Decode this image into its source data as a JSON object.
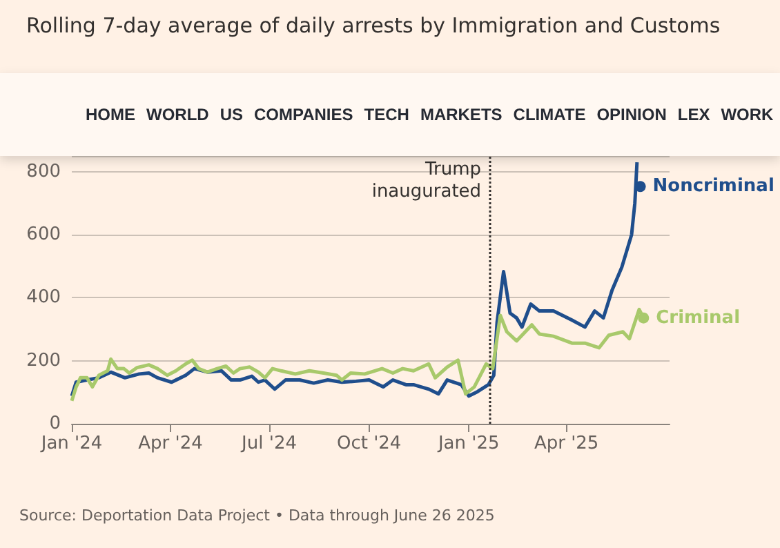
{
  "chart_data": {
    "type": "line",
    "title": "Rolling 7-day average of daily arrests by Immigration and Customs",
    "annotations": [
      "Source: Deportation Data Project • Data through June 26 2025",
      "HOME",
      "WORLD",
      "US",
      "COMPANIES",
      "TECH",
      "MARKETS",
      "CLIMATE",
      "OPINION",
      "LEX",
      "WORK"
    ],
    "series": [
      {
        "name": "Noncriminal",
        "color": "#1f4e8c",
        "x": [
          "2024-01-01",
          "2024-01-05",
          "2024-01-15",
          "2024-01-26",
          "2024-02-06",
          "2024-02-19",
          "2024-03-03",
          "2024-03-12",
          "2024-03-20",
          "2024-04-02",
          "2024-04-15",
          "2024-04-23",
          "2024-05-05",
          "2024-05-18",
          "2024-05-27",
          "2024-06-04",
          "2024-06-15",
          "2024-06-21",
          "2024-06-27",
          "2024-07-06",
          "2024-07-16",
          "2024-07-29",
          "2024-08-11",
          "2024-08-24",
          "2024-09-06",
          "2024-09-19",
          "2024-10-01",
          "2024-10-14",
          "2024-10-23",
          "2024-11-04",
          "2024-11-11",
          "2024-11-25",
          "2024-12-04",
          "2024-12-12",
          "2024-12-25",
          "2025-01-01",
          "2025-01-09",
          "2025-01-19",
          "2025-01-24",
          "2025-01-27",
          "2025-02-02",
          "2025-02-08",
          "2025-02-14",
          "2025-02-19",
          "2025-02-27",
          "2025-03-07",
          "2025-03-20",
          "2025-04-06",
          "2025-04-18",
          "2025-04-27",
          "2025-05-05",
          "2025-05-13",
          "2025-05-22",
          "2025-05-31",
          "2025-06-03",
          "2025-06-05",
          "2025-06-07",
          "2025-06-08"
        ],
        "values": [
          88,
          132,
          139,
          146,
          164,
          146,
          158,
          161,
          146,
          132,
          154,
          175,
          164,
          168,
          139,
          139,
          151,
          132,
          139,
          110,
          139,
          139,
          129,
          139,
          132,
          135,
          139,
          117,
          139,
          124,
          124,
          110,
          95,
          139,
          124,
          88,
          102,
          124,
          154,
          322,
          483,
          351,
          336,
          307,
          380,
          358,
          358,
          329,
          307,
          358,
          336,
          424,
          497,
          600,
          700,
          830,
          null,
          753
        ]
      },
      {
        "name": "Criminal",
        "color": "#a8c96b",
        "x": [
          "2024-01-01",
          "2024-01-05",
          "2024-01-09",
          "2024-01-15",
          "2024-01-20",
          "2024-01-26",
          "2024-02-03",
          "2024-02-06",
          "2024-02-12",
          "2024-02-18",
          "2024-02-23",
          "2024-03-01",
          "2024-03-12",
          "2024-03-20",
          "2024-03-29",
          "2024-04-06",
          "2024-04-15",
          "2024-04-21",
          "2024-04-27",
          "2024-05-05",
          "2024-05-14",
          "2024-05-22",
          "2024-05-29",
          "2024-06-04",
          "2024-06-13",
          "2024-06-21",
          "2024-06-27",
          "2024-07-04",
          "2024-07-12",
          "2024-07-25",
          "2024-08-07",
          "2024-08-20",
          "2024-09-01",
          "2024-09-06",
          "2024-09-14",
          "2024-09-27",
          "2024-10-13",
          "2024-10-23",
          "2024-11-01",
          "2024-11-11",
          "2024-11-25",
          "2024-12-01",
          "2024-12-12",
          "2024-12-22",
          "2024-12-29",
          "2025-01-06",
          "2025-01-17",
          "2025-01-23",
          "2025-01-30",
          "2025-02-05",
          "2025-02-14",
          "2025-02-22",
          "2025-02-28",
          "2025-03-07",
          "2025-03-20",
          "2025-04-06",
          "2025-04-18",
          "2025-05-01",
          "2025-05-10",
          "2025-05-23",
          "2025-05-29",
          "2025-06-07",
          "2025-06-11"
        ],
        "values": [
          73,
          117,
          146,
          146,
          117,
          154,
          168,
          205,
          175,
          175,
          161,
          178,
          187,
          175,
          154,
          168,
          190,
          202,
          175,
          164,
          175,
          183,
          161,
          175,
          180,
          164,
          146,
          175,
          168,
          158,
          168,
          161,
          154,
          139,
          161,
          158,
          175,
          161,
          175,
          168,
          190,
          146,
          180,
          202,
          95,
          117,
          190,
          175,
          344,
          292,
          263,
          292,
          314,
          285,
          278,
          256,
          256,
          241,
          281,
          292,
          270,
          363,
          336
        ]
      }
    ],
    "xlim": [
      "2024-01-01",
      "2025-07-05"
    ],
    "xticks": [
      {
        "value": "2024-01-01",
        "label": "Jan '24"
      },
      {
        "value": "2024-04-01",
        "label": "Apr '24"
      },
      {
        "value": "2024-07-01",
        "label": "Jul '24"
      },
      {
        "value": "2024-10-01",
        "label": "Oct '24"
      },
      {
        "value": "2025-01-01",
        "label": "Jan '25"
      },
      {
        "value": "2025-04-01",
        "label": "Apr '25"
      }
    ],
    "ylim": [
      0,
      850
    ],
    "yticks": [
      0,
      200,
      400,
      600,
      800
    ],
    "ref_lines": [
      {
        "axis": "x",
        "value": "2025-01-20",
        "label": "Trump\ninaugurated",
        "color": "#33302e",
        "line_style": "dotted"
      }
    ],
    "grid": "y",
    "legend": false,
    "marker": "none",
    "line_style": "solid"
  }
}
